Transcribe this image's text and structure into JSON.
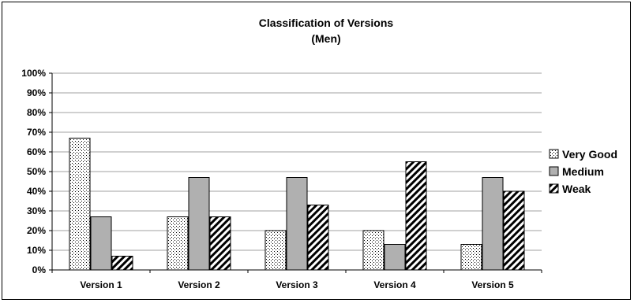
{
  "chart_data": {
    "type": "bar",
    "title": "Classification of Versions",
    "subtitle": "(Men)",
    "xlabel": "",
    "ylabel": "",
    "categories": [
      "Version 1",
      "Version 2",
      "Version 3",
      "Version 4",
      "Version 5"
    ],
    "ylim": [
      0,
      100
    ],
    "yticks": [
      "0%",
      "10%",
      "20%",
      "30%",
      "40%",
      "50%",
      "60%",
      "70%",
      "80%",
      "90%",
      "100%"
    ],
    "grid": true,
    "legend_position": "right",
    "series": [
      {
        "name": "Very Good",
        "values": [
          67,
          27,
          20,
          20,
          13
        ],
        "pattern": "dots",
        "color": "#ffffff"
      },
      {
        "name": "Medium",
        "values": [
          27,
          47,
          47,
          13,
          47
        ],
        "pattern": "solid",
        "color": "#b0b0b0"
      },
      {
        "name": "Weak",
        "values": [
          7,
          27,
          33,
          55,
          40
        ],
        "pattern": "diagonal",
        "color": "#ffffff"
      }
    ]
  }
}
